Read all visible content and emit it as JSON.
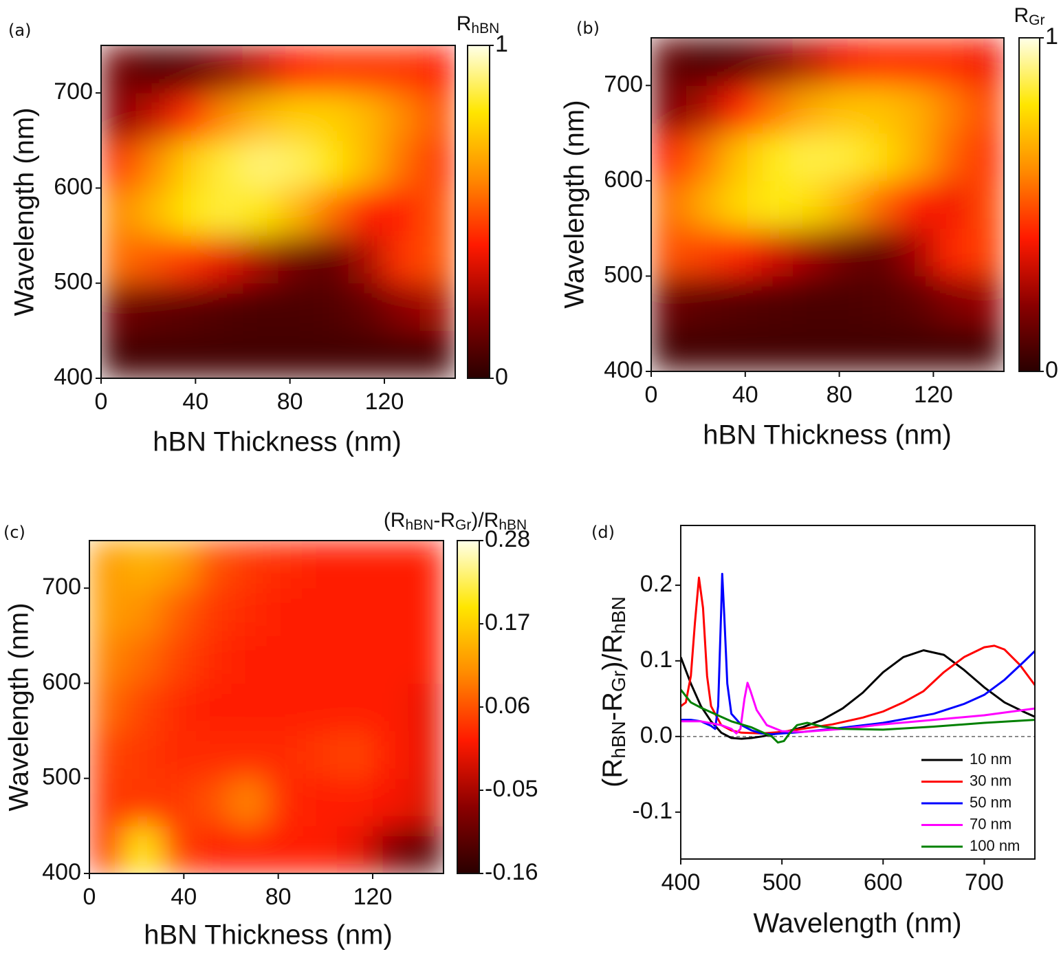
{
  "chart_data": [
    {
      "type": "heatmap",
      "panel_label": "(a)",
      "xlabel": "hBN Thickness (nm)",
      "ylabel": "Wavelength (nm)",
      "colorbar_label": [
        "R",
        "hBN"
      ],
      "x": [
        7.5,
        22.5,
        37.5,
        52.5,
        67.5,
        82.5,
        97.5,
        112.5,
        127.5,
        142.5
      ],
      "y": [
        425,
        475,
        525,
        575,
        625,
        675,
        725
      ],
      "z": [
        [
          0.05,
          0.05,
          0.05,
          0.05,
          0.05,
          0.05,
          0.05,
          0.05,
          0.05,
          0.05
        ],
        [
          0.15,
          0.12,
          0.1,
          0.08,
          0.07,
          0.07,
          0.08,
          0.12,
          0.2,
          0.25
        ],
        [
          0.55,
          0.5,
          0.45,
          0.35,
          0.25,
          0.15,
          0.12,
          0.25,
          0.45,
          0.5
        ],
        [
          0.6,
          0.7,
          0.8,
          0.85,
          0.8,
          0.7,
          0.55,
          0.4,
          0.4,
          0.5
        ],
        [
          0.45,
          0.6,
          0.75,
          0.85,
          0.9,
          0.88,
          0.8,
          0.7,
          0.55,
          0.45
        ],
        [
          0.2,
          0.3,
          0.45,
          0.6,
          0.7,
          0.75,
          0.75,
          0.7,
          0.6,
          0.5
        ],
        [
          0.15,
          0.08,
          0.1,
          0.2,
          0.3,
          0.4,
          0.45,
          0.45,
          0.45,
          0.4
        ]
      ],
      "xlim": [
        0,
        150
      ],
      "ylim": [
        400,
        750
      ],
      "xticks": [
        0,
        40,
        80,
        120
      ],
      "yticks": [
        400,
        500,
        600,
        700
      ],
      "zlim": [
        0,
        1
      ],
      "zticks": [
        0,
        1
      ],
      "colormap": [
        "#2a0000",
        "#8b0000",
        "#ff1a00",
        "#ff8a00",
        "#ffe600",
        "#ffffe8"
      ]
    },
    {
      "type": "heatmap",
      "panel_label": "(b)",
      "xlabel": "hBN Thickness (nm)",
      "ylabel": "Wavelength (nm)",
      "colorbar_label": [
        "R",
        "Gr"
      ],
      "x": [
        7.5,
        22.5,
        37.5,
        52.5,
        67.5,
        82.5,
        97.5,
        112.5,
        127.5,
        142.5
      ],
      "y": [
        425,
        475,
        525,
        575,
        625,
        675,
        725
      ],
      "z": [
        [
          0.05,
          0.05,
          0.05,
          0.05,
          0.05,
          0.05,
          0.05,
          0.05,
          0.05,
          0.05
        ],
        [
          0.14,
          0.11,
          0.09,
          0.08,
          0.07,
          0.07,
          0.08,
          0.11,
          0.18,
          0.22
        ],
        [
          0.5,
          0.47,
          0.42,
          0.33,
          0.24,
          0.15,
          0.12,
          0.24,
          0.42,
          0.47
        ],
        [
          0.55,
          0.67,
          0.77,
          0.82,
          0.78,
          0.68,
          0.54,
          0.4,
          0.38,
          0.48
        ],
        [
          0.4,
          0.56,
          0.72,
          0.82,
          0.86,
          0.85,
          0.78,
          0.68,
          0.53,
          0.44
        ],
        [
          0.17,
          0.26,
          0.42,
          0.57,
          0.67,
          0.72,
          0.72,
          0.68,
          0.58,
          0.48
        ],
        [
          0.12,
          0.07,
          0.09,
          0.18,
          0.28,
          0.38,
          0.43,
          0.43,
          0.43,
          0.38
        ]
      ],
      "xlim": [
        0,
        150
      ],
      "ylim": [
        400,
        750
      ],
      "xticks": [
        0,
        40,
        80,
        120
      ],
      "yticks": [
        400,
        500,
        600,
        700
      ],
      "zlim": [
        0,
        1
      ],
      "zticks": [
        0,
        1
      ],
      "colormap": [
        "#2a0000",
        "#8b0000",
        "#ff1a00",
        "#ff8a00",
        "#ffe600",
        "#ffffe8"
      ]
    },
    {
      "type": "heatmap",
      "panel_label": "(c)",
      "xlabel": "hBN Thickness (nm)",
      "ylabel": "Wavelength (nm)",
      "colorbar_label": [
        "(R",
        "hBN",
        "-R",
        "Gr",
        ")/R",
        "hBN"
      ],
      "x": [
        7.5,
        22.5,
        37.5,
        52.5,
        67.5,
        82.5,
        97.5,
        112.5,
        127.5,
        142.5
      ],
      "y": [
        425,
        475,
        525,
        575,
        625,
        675,
        725
      ],
      "z": [
        [
          0.04,
          0.2,
          0.05,
          0.02,
          0.02,
          0.02,
          0.02,
          0.0,
          -0.08,
          -0.12
        ],
        [
          0.04,
          0.04,
          0.04,
          0.06,
          0.1,
          0.03,
          0.02,
          0.02,
          0.01,
          -0.01
        ],
        [
          0.05,
          0.04,
          0.03,
          0.03,
          0.03,
          0.03,
          0.04,
          0.05,
          0.02,
          0.0
        ],
        [
          0.08,
          0.05,
          0.03,
          0.02,
          0.02,
          0.02,
          0.02,
          0.02,
          0.02,
          0.0
        ],
        [
          0.1,
          0.08,
          0.05,
          0.03,
          0.02,
          0.02,
          0.02,
          0.02,
          0.02,
          0.02
        ],
        [
          0.12,
          0.11,
          0.07,
          0.04,
          0.03,
          0.02,
          0.02,
          0.02,
          0.02,
          0.02
        ],
        [
          0.12,
          0.14,
          0.12,
          0.06,
          0.04,
          0.03,
          0.02,
          0.02,
          0.02,
          0.02
        ]
      ],
      "xlim": [
        0,
        150
      ],
      "ylim": [
        400,
        750
      ],
      "xticks": [
        0,
        40,
        80,
        120
      ],
      "yticks": [
        400,
        500,
        600,
        700
      ],
      "zlim": [
        -0.16,
        0.28
      ],
      "zticks": [
        -0.16,
        -0.05,
        0.06,
        0.17,
        0.28
      ],
      "colormap": [
        "#2a0000",
        "#8b0000",
        "#ff1a00",
        "#ff8a00",
        "#ffe600",
        "#ffffe8"
      ]
    },
    {
      "type": "line",
      "panel_label": "(d)",
      "xlabel": "Wavelength (nm)",
      "ylabel": [
        "(R",
        "hBN",
        "-R",
        "Gr",
        ")/R",
        "hBN"
      ],
      "xlim": [
        400,
        750
      ],
      "ylim": [
        -0.162,
        0.279
      ],
      "xticks": [
        400,
        500,
        600,
        700
      ],
      "yticks": [
        -0.1,
        {
          "value": 0,
          "label": "0.0"
        },
        0.1,
        0.2
      ],
      "zero_line": true,
      "legend": "lower right",
      "series": [
        {
          "name": "10 nm",
          "color": "#000000",
          "x": [
            400,
            410,
            420,
            430,
            440,
            450,
            460,
            470,
            480,
            500,
            520,
            540,
            560,
            580,
            600,
            620,
            640,
            660,
            680,
            700,
            720,
            740,
            750
          ],
          "values": [
            0.105,
            0.07,
            0.04,
            0.02,
            0.005,
            -0.002,
            -0.003,
            -0.002,
            0.0,
            0.005,
            0.012,
            0.022,
            0.037,
            0.058,
            0.085,
            0.105,
            0.114,
            0.108,
            0.088,
            0.065,
            0.045,
            0.032,
            0.026
          ]
        },
        {
          "name": "30 nm",
          "color": "#ff0000",
          "x": [
            400,
            405,
            410,
            414,
            418,
            422,
            426,
            430,
            440,
            450,
            460,
            480,
            500,
            520,
            550,
            580,
            600,
            620,
            640,
            660,
            680,
            700,
            710,
            720,
            735,
            750
          ],
          "values": [
            0.04,
            0.045,
            0.08,
            0.15,
            0.21,
            0.17,
            0.08,
            0.04,
            0.015,
            0.008,
            0.005,
            0.004,
            0.006,
            0.01,
            0.016,
            0.025,
            0.033,
            0.045,
            0.06,
            0.085,
            0.105,
            0.118,
            0.12,
            0.115,
            0.095,
            0.068
          ]
        },
        {
          "name": "50 nm",
          "color": "#0000ff",
          "x": [
            400,
            410,
            420,
            430,
            434,
            437,
            440,
            441,
            443,
            446,
            450,
            460,
            470,
            480,
            490,
            500,
            520,
            550,
            600,
            650,
            680,
            700,
            720,
            740,
            750
          ],
          "values": [
            0.022,
            0.022,
            0.02,
            0.014,
            0.01,
            0.04,
            0.17,
            0.215,
            0.16,
            0.07,
            0.03,
            0.015,
            0.008,
            0.004,
            0.003,
            0.004,
            0.006,
            0.01,
            0.018,
            0.03,
            0.043,
            0.055,
            0.075,
            0.1,
            0.113
          ]
        },
        {
          "name": "70 nm",
          "color": "#ff00ff",
          "x": [
            400,
            420,
            440,
            450,
            455,
            459,
            463,
            466,
            469,
            475,
            485,
            500,
            520,
            560,
            600,
            650,
            700,
            750
          ],
          "values": [
            0.02,
            0.02,
            0.015,
            0.01,
            0.004,
            0.01,
            0.05,
            0.071,
            0.06,
            0.035,
            0.015,
            0.007,
            0.006,
            0.01,
            0.016,
            0.022,
            0.028,
            0.037
          ]
        },
        {
          "name": "100 nm",
          "color": "#008000",
          "x": [
            400,
            410,
            420,
            430,
            440,
            450,
            460,
            470,
            480,
            490,
            496,
            502,
            508,
            515,
            525,
            540,
            560,
            600,
            650,
            700,
            750
          ],
          "values": [
            0.062,
            0.045,
            0.038,
            0.032,
            0.026,
            0.02,
            0.016,
            0.012,
            0.006,
            0.0,
            -0.008,
            -0.006,
            0.005,
            0.015,
            0.018,
            0.013,
            0.01,
            0.009,
            0.013,
            0.018,
            0.022
          ]
        }
      ]
    }
  ]
}
